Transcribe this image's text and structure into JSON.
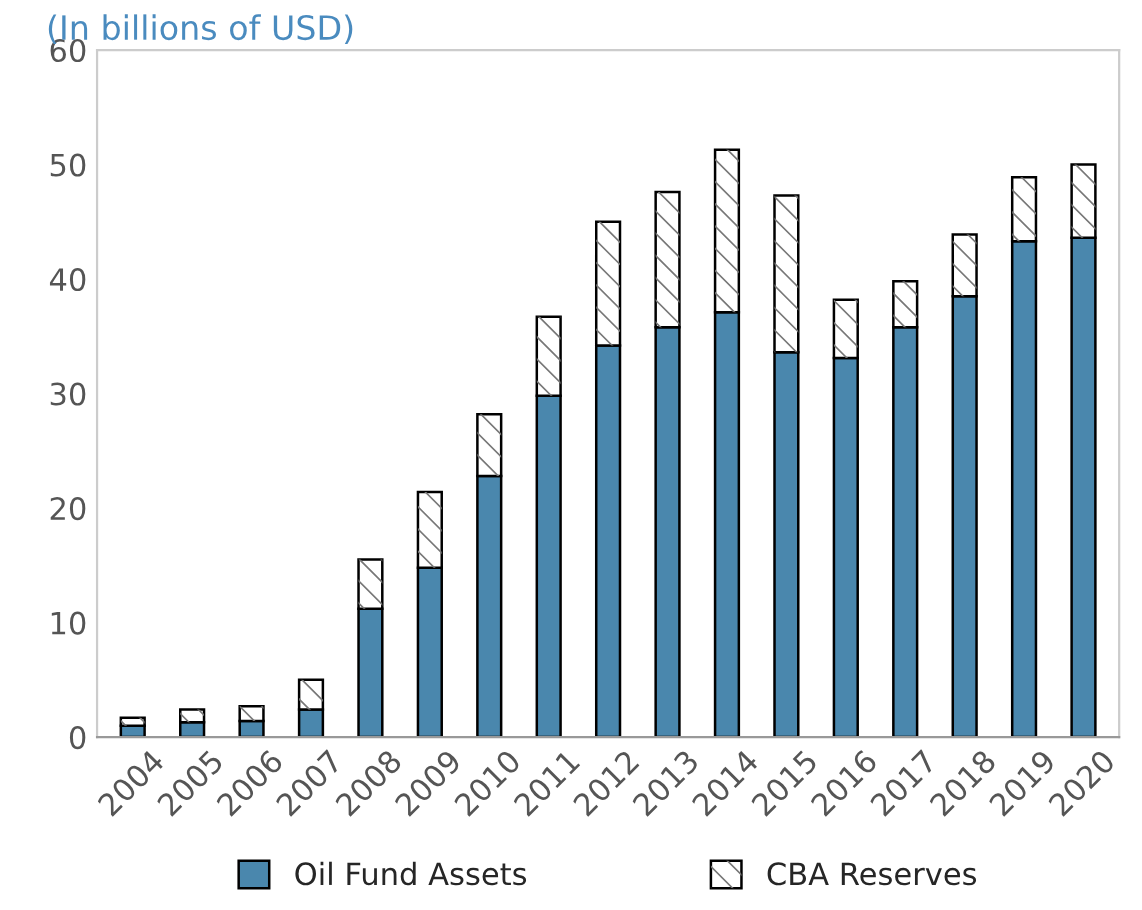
{
  "chart_data": {
    "type": "bar",
    "subtitle": "(In billions of USD)",
    "categories": [
      "2004",
      "2005",
      "2006",
      "2007",
      "2008",
      "2009",
      "2010",
      "2011",
      "2012",
      "2013",
      "2014",
      "2015",
      "2016",
      "2017",
      "2018",
      "2019",
      "2020"
    ],
    "series": [
      {
        "name": "Oil Fund Assets",
        "color": "#4a87ad",
        "values": [
          1.0,
          1.3,
          1.4,
          2.4,
          11.2,
          14.8,
          22.8,
          29.8,
          34.2,
          35.8,
          37.1,
          33.6,
          33.1,
          35.8,
          38.5,
          43.3,
          43.6
        ]
      },
      {
        "name": "CBA Reserves",
        "color": "#ffffff",
        "values": [
          0.7,
          1.1,
          1.3,
          2.6,
          4.3,
          6.6,
          5.4,
          6.9,
          10.8,
          11.8,
          14.2,
          13.7,
          5.1,
          4.0,
          5.4,
          5.6,
          6.4
        ]
      }
    ],
    "stacked": true,
    "ylim": [
      0,
      60
    ],
    "yticks": [
      0,
      10,
      20,
      30,
      40,
      50,
      60
    ],
    "grid": false,
    "legend": "bottom"
  }
}
